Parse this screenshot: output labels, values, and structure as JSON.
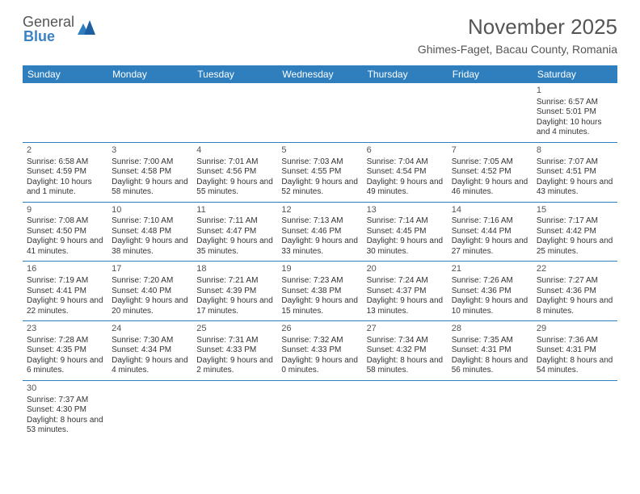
{
  "logo": {
    "part1": "General",
    "part2": "Blue"
  },
  "title": "November 2025",
  "location": "Ghimes-Faget, Bacau County, Romania",
  "day_headers": [
    "Sunday",
    "Monday",
    "Tuesday",
    "Wednesday",
    "Thursday",
    "Friday",
    "Saturday"
  ],
  "colors": {
    "header_bg": "#2f7fbf",
    "header_text": "#ffffff",
    "rule": "#2f7fbf",
    "text": "#333333",
    "title": "#555555"
  },
  "weeks": [
    [
      null,
      null,
      null,
      null,
      null,
      null,
      {
        "d": "1",
        "sr": "Sunrise: 6:57 AM",
        "ss": "Sunset: 5:01 PM",
        "dl": "Daylight: 10 hours and 4 minutes."
      }
    ],
    [
      {
        "d": "2",
        "sr": "Sunrise: 6:58 AM",
        "ss": "Sunset: 4:59 PM",
        "dl": "Daylight: 10 hours and 1 minute."
      },
      {
        "d": "3",
        "sr": "Sunrise: 7:00 AM",
        "ss": "Sunset: 4:58 PM",
        "dl": "Daylight: 9 hours and 58 minutes."
      },
      {
        "d": "4",
        "sr": "Sunrise: 7:01 AM",
        "ss": "Sunset: 4:56 PM",
        "dl": "Daylight: 9 hours and 55 minutes."
      },
      {
        "d": "5",
        "sr": "Sunrise: 7:03 AM",
        "ss": "Sunset: 4:55 PM",
        "dl": "Daylight: 9 hours and 52 minutes."
      },
      {
        "d": "6",
        "sr": "Sunrise: 7:04 AM",
        "ss": "Sunset: 4:54 PM",
        "dl": "Daylight: 9 hours and 49 minutes."
      },
      {
        "d": "7",
        "sr": "Sunrise: 7:05 AM",
        "ss": "Sunset: 4:52 PM",
        "dl": "Daylight: 9 hours and 46 minutes."
      },
      {
        "d": "8",
        "sr": "Sunrise: 7:07 AM",
        "ss": "Sunset: 4:51 PM",
        "dl": "Daylight: 9 hours and 43 minutes."
      }
    ],
    [
      {
        "d": "9",
        "sr": "Sunrise: 7:08 AM",
        "ss": "Sunset: 4:50 PM",
        "dl": "Daylight: 9 hours and 41 minutes."
      },
      {
        "d": "10",
        "sr": "Sunrise: 7:10 AM",
        "ss": "Sunset: 4:48 PM",
        "dl": "Daylight: 9 hours and 38 minutes."
      },
      {
        "d": "11",
        "sr": "Sunrise: 7:11 AM",
        "ss": "Sunset: 4:47 PM",
        "dl": "Daylight: 9 hours and 35 minutes."
      },
      {
        "d": "12",
        "sr": "Sunrise: 7:13 AM",
        "ss": "Sunset: 4:46 PM",
        "dl": "Daylight: 9 hours and 33 minutes."
      },
      {
        "d": "13",
        "sr": "Sunrise: 7:14 AM",
        "ss": "Sunset: 4:45 PM",
        "dl": "Daylight: 9 hours and 30 minutes."
      },
      {
        "d": "14",
        "sr": "Sunrise: 7:16 AM",
        "ss": "Sunset: 4:44 PM",
        "dl": "Daylight: 9 hours and 27 minutes."
      },
      {
        "d": "15",
        "sr": "Sunrise: 7:17 AM",
        "ss": "Sunset: 4:42 PM",
        "dl": "Daylight: 9 hours and 25 minutes."
      }
    ],
    [
      {
        "d": "16",
        "sr": "Sunrise: 7:19 AM",
        "ss": "Sunset: 4:41 PM",
        "dl": "Daylight: 9 hours and 22 minutes."
      },
      {
        "d": "17",
        "sr": "Sunrise: 7:20 AM",
        "ss": "Sunset: 4:40 PM",
        "dl": "Daylight: 9 hours and 20 minutes."
      },
      {
        "d": "18",
        "sr": "Sunrise: 7:21 AM",
        "ss": "Sunset: 4:39 PM",
        "dl": "Daylight: 9 hours and 17 minutes."
      },
      {
        "d": "19",
        "sr": "Sunrise: 7:23 AM",
        "ss": "Sunset: 4:38 PM",
        "dl": "Daylight: 9 hours and 15 minutes."
      },
      {
        "d": "20",
        "sr": "Sunrise: 7:24 AM",
        "ss": "Sunset: 4:37 PM",
        "dl": "Daylight: 9 hours and 13 minutes."
      },
      {
        "d": "21",
        "sr": "Sunrise: 7:26 AM",
        "ss": "Sunset: 4:36 PM",
        "dl": "Daylight: 9 hours and 10 minutes."
      },
      {
        "d": "22",
        "sr": "Sunrise: 7:27 AM",
        "ss": "Sunset: 4:36 PM",
        "dl": "Daylight: 9 hours and 8 minutes."
      }
    ],
    [
      {
        "d": "23",
        "sr": "Sunrise: 7:28 AM",
        "ss": "Sunset: 4:35 PM",
        "dl": "Daylight: 9 hours and 6 minutes."
      },
      {
        "d": "24",
        "sr": "Sunrise: 7:30 AM",
        "ss": "Sunset: 4:34 PM",
        "dl": "Daylight: 9 hours and 4 minutes."
      },
      {
        "d": "25",
        "sr": "Sunrise: 7:31 AM",
        "ss": "Sunset: 4:33 PM",
        "dl": "Daylight: 9 hours and 2 minutes."
      },
      {
        "d": "26",
        "sr": "Sunrise: 7:32 AM",
        "ss": "Sunset: 4:33 PM",
        "dl": "Daylight: 9 hours and 0 minutes."
      },
      {
        "d": "27",
        "sr": "Sunrise: 7:34 AM",
        "ss": "Sunset: 4:32 PM",
        "dl": "Daylight: 8 hours and 58 minutes."
      },
      {
        "d": "28",
        "sr": "Sunrise: 7:35 AM",
        "ss": "Sunset: 4:31 PM",
        "dl": "Daylight: 8 hours and 56 minutes."
      },
      {
        "d": "29",
        "sr": "Sunrise: 7:36 AM",
        "ss": "Sunset: 4:31 PM",
        "dl": "Daylight: 8 hours and 54 minutes."
      }
    ],
    [
      {
        "d": "30",
        "sr": "Sunrise: 7:37 AM",
        "ss": "Sunset: 4:30 PM",
        "dl": "Daylight: 8 hours and 53 minutes."
      },
      null,
      null,
      null,
      null,
      null,
      null
    ]
  ]
}
